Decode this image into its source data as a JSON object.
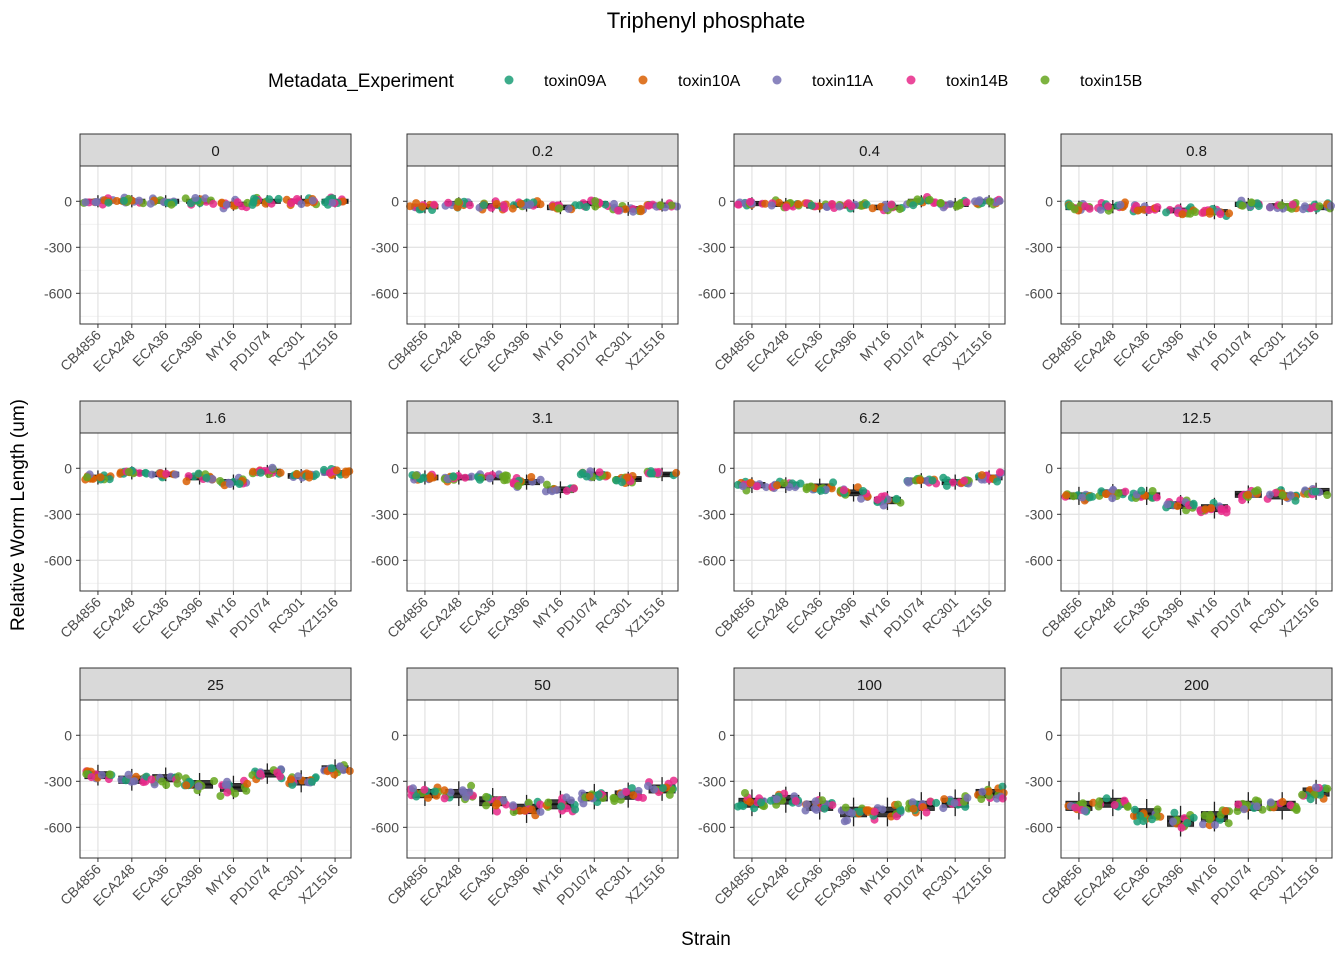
{
  "chart_data": {
    "type": "faceted-boxplot-jitter",
    "title": "Triphenyl phosphate",
    "xlabel": "Strain",
    "ylabel": "Relative Worm Length (um)",
    "ylim": [
      -800,
      230
    ],
    "yticks": [
      0,
      -300,
      -600
    ],
    "categories": [
      "CB4856",
      "ECA248",
      "ECA36",
      "ECA396",
      "MY16",
      "PD1074",
      "RC301",
      "XZ1516"
    ],
    "legend": {
      "title": "Metadata_Experiment",
      "placement": "top",
      "entries": [
        {
          "name": "toxin09A",
          "color": "#1b9e77"
        },
        {
          "name": "toxin10A",
          "color": "#d95f02"
        },
        {
          "name": "toxin11A",
          "color": "#7570b3"
        },
        {
          "name": "toxin14B",
          "color": "#e7298a"
        },
        {
          "name": "toxin15B",
          "color": "#66a61e"
        }
      ]
    },
    "facets": [
      {
        "label": "0",
        "medians": [
          0,
          0,
          0,
          0,
          -20,
          0,
          0,
          0
        ]
      },
      {
        "label": "0.2",
        "medians": [
          -35,
          -15,
          -30,
          -25,
          -40,
          -15,
          -50,
          -25
        ]
      },
      {
        "label": "0.4",
        "medians": [
          -15,
          -20,
          -30,
          -30,
          -40,
          0,
          -20,
          0
        ]
      },
      {
        "label": "0.8",
        "medians": [
          -40,
          -35,
          -50,
          -60,
          -70,
          -20,
          -30,
          -40
        ]
      },
      {
        "label": "1.6",
        "medians": [
          -60,
          -30,
          -40,
          -60,
          -90,
          -20,
          -50,
          -30
        ]
      },
      {
        "label": "3.1",
        "medians": [
          -60,
          -60,
          -60,
          -90,
          -140,
          -40,
          -70,
          -40
        ]
      },
      {
        "label": "6.2",
        "medians": [
          -110,
          -110,
          -120,
          -160,
          -210,
          -80,
          -90,
          -60
        ]
      },
      {
        "label": "12.5",
        "medians": [
          -180,
          -160,
          -180,
          -240,
          -260,
          -170,
          -180,
          -150
        ]
      },
      {
        "label": "25",
        "medians": [
          -260,
          -290,
          -280,
          -320,
          -340,
          -250,
          -300,
          -220
        ]
      },
      {
        "label": "50",
        "medians": [
          -380,
          -380,
          -430,
          -480,
          -450,
          -400,
          -390,
          -350
        ]
      },
      {
        "label": "100",
        "medians": [
          -440,
          -420,
          -460,
          -500,
          -500,
          -460,
          -440,
          -380
        ]
      },
      {
        "label": "200",
        "medians": [
          -460,
          -440,
          -510,
          -560,
          -530,
          -460,
          -460,
          -370
        ]
      }
    ]
  }
}
